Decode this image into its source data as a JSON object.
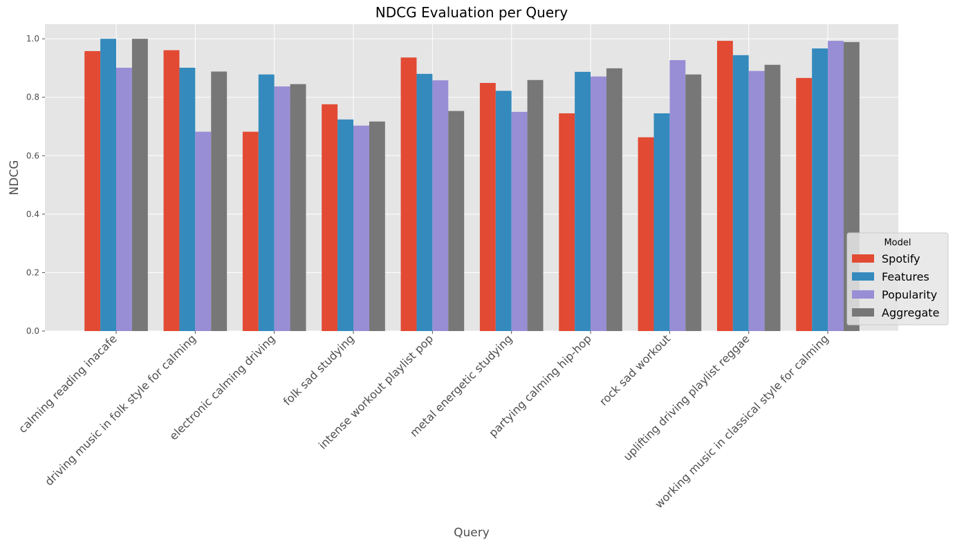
{
  "chart_data": {
    "type": "bar",
    "title": "NDCG Evaluation per Query",
    "xlabel": "Query",
    "ylabel": "NDCG",
    "ylim": [
      0,
      1.05
    ],
    "yticks": [
      "0.0",
      "0.2",
      "0.4",
      "0.6",
      "0.8",
      "1.0"
    ],
    "grid": true,
    "legend": {
      "title": "Model",
      "placement": "lower-right"
    },
    "categories": [
      "calming reading inacafe",
      "driving music in folk style for calming",
      "electronic calming driving",
      "folk sad studying",
      "intense workout playlist pop",
      "metal energetic studying",
      "partying calming hip-hop",
      "rock sad workout",
      "uplifting driving playlist reggae",
      "working music in classical style for calming"
    ],
    "series": [
      {
        "name": "Spotify",
        "color": "#E24A33",
        "values": [
          0.958,
          0.961,
          0.682,
          0.776,
          0.936,
          0.849,
          0.745,
          0.663,
          0.993,
          0.866
        ]
      },
      {
        "name": "Features",
        "color": "#348ABD",
        "values": [
          1.0,
          0.901,
          0.878,
          0.724,
          0.88,
          0.822,
          0.887,
          0.745,
          0.944,
          0.967
        ]
      },
      {
        "name": "Popularity",
        "color": "#988ED5",
        "values": [
          0.901,
          0.682,
          0.837,
          0.703,
          0.858,
          0.75,
          0.871,
          0.927,
          0.89,
          0.993
        ]
      },
      {
        "name": "Aggregate",
        "color": "#777777",
        "values": [
          1.0,
          0.888,
          0.845,
          0.717,
          0.753,
          0.859,
          0.899,
          0.878,
          0.911,
          0.989
        ]
      }
    ]
  }
}
